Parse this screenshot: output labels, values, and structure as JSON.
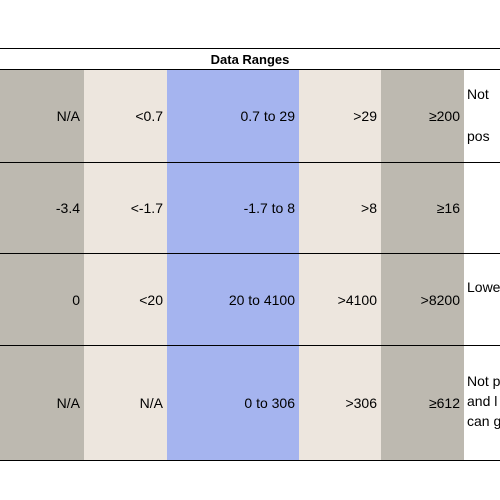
{
  "table": {
    "title": "Data Ranges",
    "rows": [
      {
        "cells": [
          "N/A",
          "<0.7",
          "0.7 to 29",
          ">29",
          "≥200"
        ],
        "notes": [
          "Not",
          "pos"
        ]
      },
      {
        "cells": [
          "-3.4",
          "<-1.7",
          "-1.7 to 8",
          ">8",
          "≥16"
        ],
        "notes": []
      },
      {
        "cells": [
          "0",
          "<20",
          "20 to 4100",
          ">4100",
          ">8200"
        ],
        "notes": [
          "Lowe"
        ]
      },
      {
        "cells": [
          "N/A",
          "N/A",
          "0 to 306",
          ">306",
          "≥612"
        ],
        "notes": [
          "Not p",
          "and l",
          "can g"
        ]
      }
    ]
  }
}
